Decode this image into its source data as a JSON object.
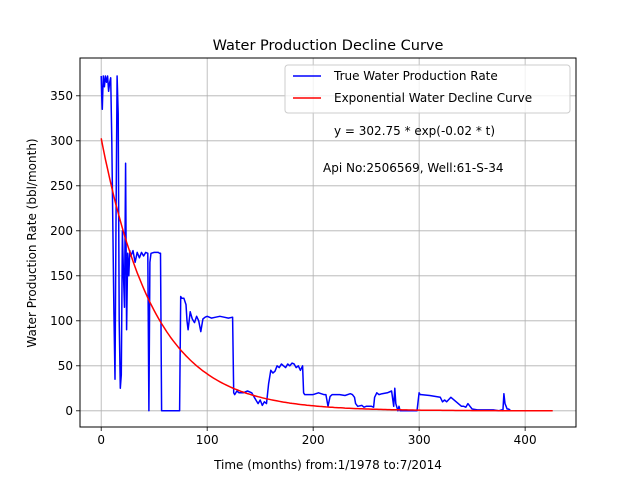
{
  "chart_data": {
    "type": "line",
    "title": "Water Production Decline Curve",
    "xlabel": "Time (months) from:1/1978 to:7/2014",
    "ylabel": "Water Production Rate (bbl/month)",
    "xlim": [
      -20,
      448
    ],
    "ylim": [
      -18,
      392
    ],
    "xticks": [
      0,
      100,
      200,
      300,
      400
    ],
    "yticks": [
      0,
      50,
      100,
      150,
      200,
      250,
      300,
      350
    ],
    "grid": true,
    "legend_position": "top-right",
    "annotations": [
      "y = 302.75 * exp(-0.02 * t)",
      "Api No:2506569, Well:61-S-34"
    ],
    "series": [
      {
        "name": "True Water Production Rate",
        "color": "#0000ff",
        "x": [
          0,
          0.5,
          1,
          1.5,
          2,
          3,
          4,
          5,
          6,
          7,
          8,
          9,
          10,
          11,
          12,
          13,
          14,
          15,
          16,
          17,
          18,
          19,
          20,
          21,
          22,
          23,
          24,
          25,
          26,
          27,
          28,
          30,
          32,
          34,
          36,
          38,
          40,
          42,
          44,
          45,
          46,
          47,
          50,
          54,
          55,
          56,
          57,
          60,
          74,
          75,
          76,
          78,
          80,
          81,
          82,
          84,
          86,
          88,
          90,
          92,
          94,
          96,
          98,
          100,
          104,
          108,
          112,
          116,
          120,
          124,
          125,
          126,
          128,
          130,
          134,
          138,
          142,
          146,
          148,
          150,
          152,
          154,
          156,
          158,
          160,
          162,
          164,
          166,
          168,
          170,
          172,
          174,
          176,
          178,
          180,
          182,
          184,
          186,
          188,
          190,
          191,
          192,
          195,
          200,
          205,
          210,
          212,
          214,
          216,
          218,
          220,
          225,
          230,
          235,
          237,
          239,
          240,
          242,
          246,
          248,
          250,
          255,
          257,
          258,
          260,
          262,
          265,
          270,
          274,
          276,
          277,
          278,
          280,
          281,
          282,
          284,
          290,
          298,
          300,
          301,
          302,
          310,
          320,
          322,
          324,
          326,
          330,
          340,
          342,
          344,
          346,
          348,
          350,
          355,
          360,
          365,
          370,
          375,
          378,
          379,
          380,
          381,
          382,
          383,
          384,
          386
        ],
        "y": [
          372,
          350,
          335,
          355,
          372,
          360,
          372,
          365,
          372,
          355,
          365,
          370,
          300,
          200,
          110,
          35,
          210,
          372,
          330,
          100,
          25,
          40,
          200,
          150,
          115,
          275,
          90,
          175,
          150,
          178,
          172,
          178,
          165,
          176,
          170,
          176,
          172,
          176,
          175,
          0,
          165,
          175,
          176,
          176,
          175,
          175,
          0,
          0,
          0,
          127,
          125,
          125,
          118,
          100,
          90,
          110,
          102,
          98,
          105,
          100,
          88,
          102,
          104,
          105,
          103,
          104,
          105,
          104,
          103,
          104,
          20,
          18,
          22,
          20,
          20,
          22,
          20,
          12,
          8,
          12,
          6,
          10,
          8,
          30,
          45,
          42,
          44,
          50,
          48,
          52,
          50,
          48,
          52,
          50,
          53,
          52,
          48,
          50,
          45,
          50,
          20,
          18,
          18,
          18,
          20,
          18,
          18,
          5,
          16,
          18,
          18,
          18,
          17,
          19,
          18,
          15,
          8,
          5,
          6,
          4,
          5,
          5,
          4,
          15,
          20,
          18,
          19,
          20,
          22,
          5,
          25,
          8,
          0,
          5,
          0,
          0,
          0,
          0,
          20,
          18,
          18,
          17,
          15,
          10,
          12,
          10,
          15,
          5,
          5,
          4,
          8,
          5,
          2,
          1,
          1,
          1,
          1,
          0,
          1,
          0,
          19,
          8,
          5,
          2,
          2,
          1
        ]
      },
      {
        "name": "Exponential Water Decline Curve",
        "color": "#ff0000",
        "model": "302.75 * exp(-0.02 * t)",
        "x_range": [
          0,
          426
        ]
      }
    ]
  }
}
